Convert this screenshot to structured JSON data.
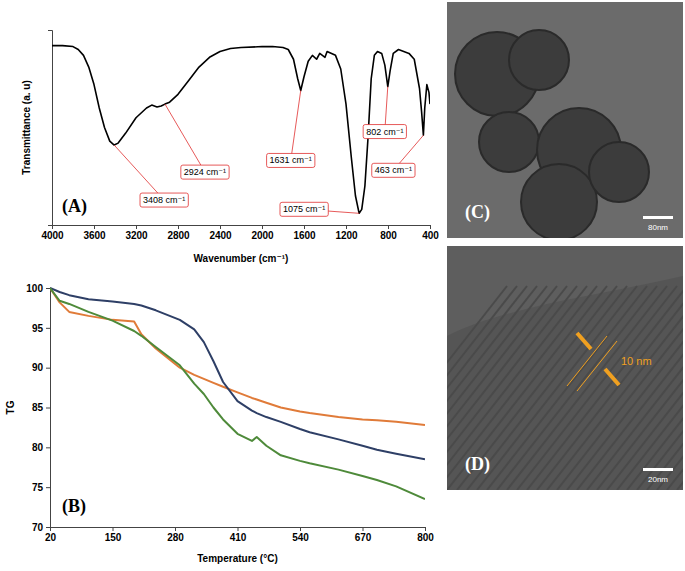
{
  "chart_data": [
    {
      "type": "line",
      "panel_label": "(A)",
      "x_label": "Wavenumber (cm⁻¹)",
      "y_label": "Transmittance (a. u)",
      "x": [
        4000,
        3900,
        3800,
        3750,
        3700,
        3650,
        3600,
        3550,
        3500,
        3450,
        3408,
        3370,
        3300,
        3200,
        3100,
        3050,
        3000,
        2960,
        2924,
        2880,
        2800,
        2700,
        2600,
        2500,
        2400,
        2300,
        2200,
        2000,
        1900,
        1800,
        1750,
        1700,
        1660,
        1631,
        1600,
        1560,
        1520,
        1480,
        1450,
        1400,
        1380,
        1300,
        1250,
        1200,
        1150,
        1110,
        1075,
        1050,
        1020,
        990,
        960,
        930,
        900,
        860,
        830,
        802,
        780,
        750,
        700,
        650,
        600,
        550,
        500,
        480,
        463,
        450,
        430,
        410,
        400
      ],
      "series": [
        {
          "color": "#000000",
          "values": [
            92,
            92,
            91.5,
            90,
            87,
            81,
            72,
            60,
            50,
            43,
            41,
            42,
            47,
            55,
            60,
            61.5,
            60.5,
            61,
            62,
            63,
            67,
            74,
            81,
            86,
            89,
            90.5,
            91,
            91.5,
            91.5,
            91,
            90,
            85,
            75,
            69,
            76,
            84,
            87,
            85,
            88,
            86,
            89,
            87,
            80,
            62,
            35,
            15,
            6,
            8,
            20,
            45,
            75,
            87,
            89,
            88,
            82,
            71,
            79,
            88,
            90,
            89,
            88,
            85,
            70,
            58,
            46,
            60,
            72,
            68,
            62
          ]
        }
      ],
      "xlim": [
        4000,
        400
      ],
      "xticks": [
        4000,
        3600,
        3200,
        2800,
        2400,
        2000,
        1600,
        1200,
        800,
        400
      ],
      "ylim": [
        0,
        100
      ],
      "tick_labels": "x",
      "annotations": [
        {
          "text": "3408 cm⁻¹",
          "x": 3408,
          "y": 41
        },
        {
          "text": "2924 cm⁻¹",
          "x": 2924,
          "y": 62
        },
        {
          "text": "1631 cm⁻¹",
          "x": 1631,
          "y": 69
        },
        {
          "text": "1075 cm⁻¹",
          "x": 1075,
          "y": 6
        },
        {
          "text": "802 cm⁻¹",
          "x": 802,
          "y": 71
        },
        {
          "text": "463 cm⁻¹",
          "x": 463,
          "y": 46
        }
      ]
    },
    {
      "type": "line",
      "panel_label": "(B)",
      "x_label": "Temperature (°C)",
      "y_label": "TG",
      "x": [
        20,
        40,
        60,
        100,
        150,
        195,
        210,
        240,
        290,
        320,
        340,
        360,
        380,
        410,
        440,
        450,
        470,
        500,
        540,
        560,
        620,
        670,
        700,
        740,
        800
      ],
      "series": [
        {
          "color": "#e07b39",
          "values": [
            100,
            98.2,
            97,
            96.5,
            96.0,
            95.8,
            94.2,
            92.4,
            90.0,
            89.1,
            88.6,
            88.1,
            87.6,
            86.9,
            86.2,
            86.0,
            85.6,
            85.0,
            84.5,
            84.3,
            83.8,
            83.5,
            83.4,
            83.2,
            82.8
          ]
        },
        {
          "color": "#2e3f66",
          "values": [
            100,
            99.5,
            99.1,
            98.6,
            98.3,
            98.0,
            97.8,
            97.2,
            96.0,
            94.8,
            93.2,
            90.8,
            88.2,
            85.8,
            84.6,
            84.3,
            83.8,
            83.2,
            82.3,
            81.9,
            81.0,
            80.2,
            79.7,
            79.2,
            78.5
          ]
        },
        {
          "color": "#4e8a3a",
          "values": [
            100,
            98.4,
            98.0,
            97.0,
            95.9,
            94.6,
            94.0,
            92.6,
            90.3,
            88.0,
            86.7,
            85.0,
            83.5,
            81.7,
            80.8,
            81.3,
            80.2,
            79.0,
            78.3,
            78.0,
            77.2,
            76.4,
            75.9,
            75.1,
            73.5
          ]
        }
      ],
      "xlim": [
        20,
        800
      ],
      "xticks": [
        20,
        150,
        280,
        410,
        540,
        670,
        800
      ],
      "ylim": [
        70,
        100
      ],
      "yticks": [
        70,
        75,
        80,
        85,
        90,
        95,
        100
      ]
    },
    {
      "type": "image",
      "panel_label": "(C)",
      "scale_bar": "80nm"
    },
    {
      "type": "image",
      "panel_label": "(D)",
      "scale_bar": "20nm",
      "annotation": "10 nm"
    }
  ]
}
